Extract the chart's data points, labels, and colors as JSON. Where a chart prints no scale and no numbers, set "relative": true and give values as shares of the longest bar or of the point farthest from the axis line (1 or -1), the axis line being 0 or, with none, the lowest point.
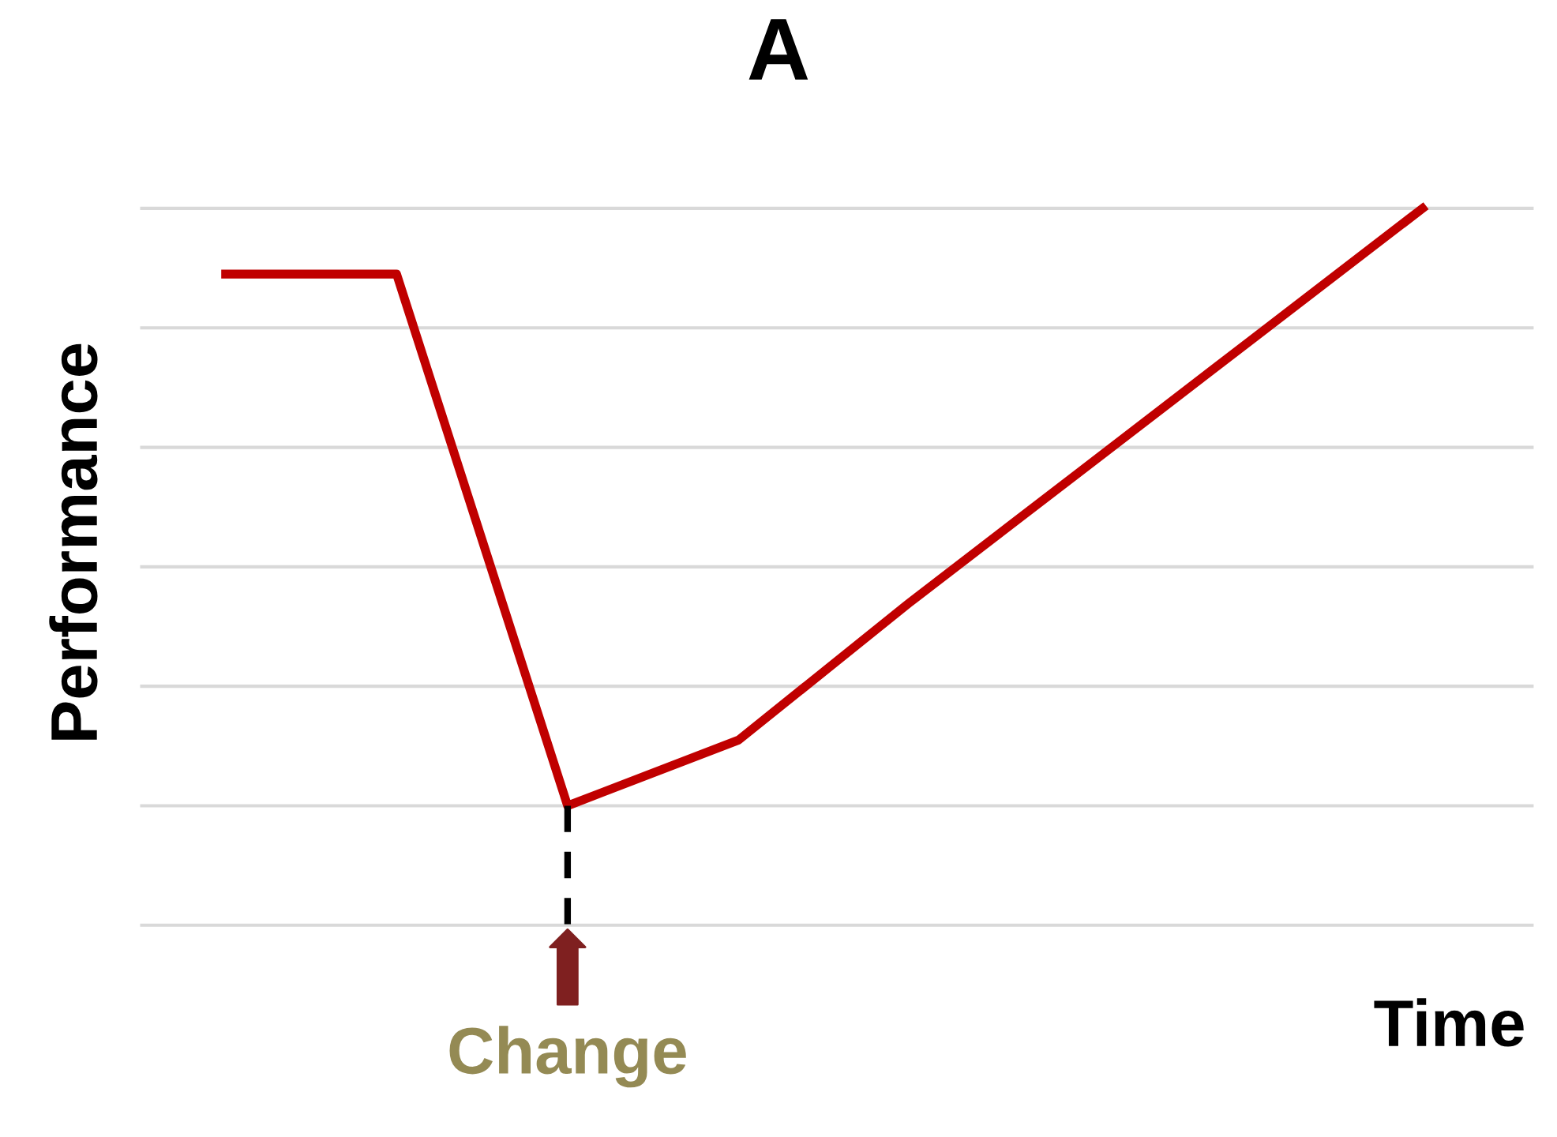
{
  "chart_data": {
    "type": "line",
    "title": "A",
    "xlabel": "Time",
    "ylabel": "Performance",
    "relative": true,
    "grid": "y",
    "legend": false,
    "marker": "none",
    "line_style": "solid",
    "categories": [
      null,
      null,
      null,
      null,
      null,
      null,
      null,
      null
    ],
    "series": [
      {
        "color": "#c00000",
        "values": [
          0.89,
          0.89,
          0,
          0.11,
          0.34,
          0.56,
          0.78,
          1
        ]
      }
    ],
    "annotations": [
      "Change"
    ]
  }
}
